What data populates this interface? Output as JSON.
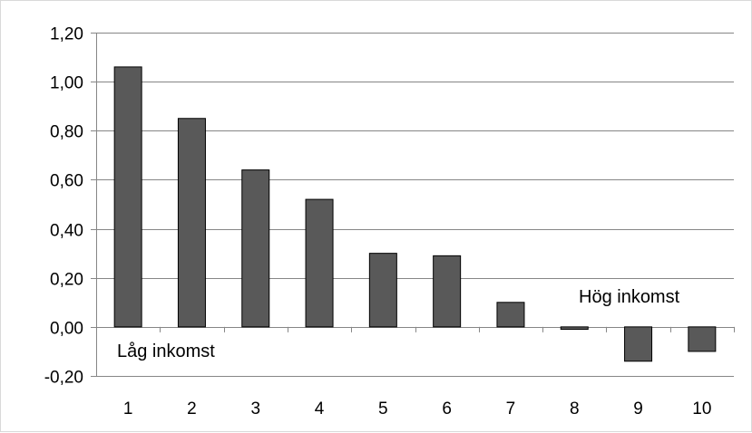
{
  "chart_data": {
    "type": "bar",
    "title": "",
    "xlabel": "",
    "ylabel": "",
    "categories": [
      "1",
      "2",
      "3",
      "4",
      "5",
      "6",
      "7",
      "8",
      "9",
      "10"
    ],
    "values": [
      1.06,
      0.85,
      0.64,
      0.52,
      0.3,
      0.29,
      0.1,
      -0.01,
      -0.14,
      -0.1
    ],
    "ylim": [
      -0.2,
      1.2
    ],
    "yticks": [
      "-0,20",
      "0,00",
      "0,20",
      "0,40",
      "0,60",
      "0,80",
      "1,00",
      "1,20"
    ],
    "grid": true,
    "legend": "none",
    "annotations": {
      "low": "Låg inkomst",
      "high": "Hög inkomst"
    },
    "colors": {
      "bar_fill": "#595959",
      "bar_stroke": "#000000",
      "grid": "#868686",
      "axis": "#868686"
    }
  }
}
